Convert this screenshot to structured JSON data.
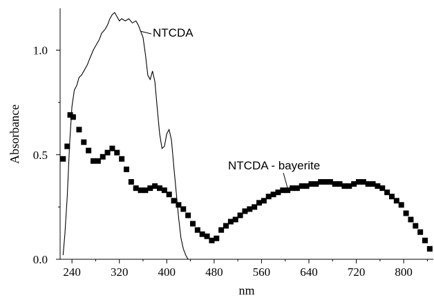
{
  "chart_data": {
    "type": "line",
    "xlabel": "nm",
    "ylabel": "Absorbance",
    "xlim": [
      220,
      850
    ],
    "ylim": [
      0,
      1.2
    ],
    "xticks": [
      "240",
      "320",
      "400",
      "480",
      "560",
      "640",
      "720",
      "800"
    ],
    "xtick_values": [
      240,
      320,
      400,
      480,
      560,
      640,
      720,
      800
    ],
    "yticks": [
      "0.0",
      "0.5",
      "1.0"
    ],
    "ytick_values": [
      0,
      0.5,
      1.0
    ],
    "grid": false,
    "legend": "none",
    "annotations": [
      {
        "text": "NTCDA",
        "series": "NTCDA"
      },
      {
        "text": "NTCDA - bayerite",
        "series": "NTCDA - bayerite"
      }
    ],
    "series": [
      {
        "name": "NTCDA",
        "style": "line",
        "color": "#000000",
        "x": [
          225,
          228,
          232,
          236,
          240,
          244,
          248,
          252,
          256,
          260,
          266,
          270,
          276,
          280,
          286,
          290,
          296,
          300,
          304,
          308,
          312,
          316,
          320,
          324,
          330,
          336,
          342,
          348,
          352,
          356,
          360,
          364,
          368,
          372,
          376,
          380,
          384,
          388,
          392,
          396,
          400,
          404,
          408,
          412,
          416,
          420,
          424,
          428,
          432,
          436
        ],
        "y": [
          0.02,
          0.12,
          0.3,
          0.55,
          0.73,
          0.81,
          0.83,
          0.87,
          0.88,
          0.9,
          0.93,
          0.96,
          1.0,
          1.02,
          1.05,
          1.08,
          1.1,
          1.12,
          1.15,
          1.17,
          1.18,
          1.16,
          1.14,
          1.15,
          1.14,
          1.15,
          1.13,
          1.14,
          1.12,
          1.09,
          1.06,
          0.98,
          0.88,
          0.86,
          0.9,
          0.85,
          0.72,
          0.6,
          0.53,
          0.54,
          0.6,
          0.62,
          0.57,
          0.44,
          0.32,
          0.2,
          0.1,
          0.05,
          0.02,
          0.0
        ]
      },
      {
        "name": "NTCDA - bayerite",
        "style": "markers",
        "color": "#000000",
        "x": [
          225,
          232,
          237,
          242,
          252,
          260,
          268,
          276,
          284,
          292,
          300,
          308,
          316,
          324,
          332,
          340,
          348,
          356,
          364,
          372,
          380,
          388,
          396,
          404,
          412,
          420,
          428,
          436,
          444,
          452,
          460,
          468,
          476,
          484,
          492,
          500,
          508,
          516,
          524,
          532,
          540,
          548,
          556,
          564,
          572,
          580,
          588,
          596,
          604,
          612,
          620,
          628,
          636,
          644,
          652,
          660,
          668,
          676,
          684,
          692,
          700,
          708,
          716,
          724,
          732,
          740,
          748,
          756,
          764,
          772,
          780,
          788,
          796,
          804,
          812,
          820,
          828,
          836,
          844
        ],
        "y": [
          0.48,
          0.54,
          0.69,
          0.68,
          0.62,
          0.56,
          0.52,
          0.47,
          0.47,
          0.49,
          0.51,
          0.53,
          0.51,
          0.48,
          0.43,
          0.37,
          0.34,
          0.33,
          0.33,
          0.34,
          0.35,
          0.34,
          0.33,
          0.31,
          0.28,
          0.26,
          0.24,
          0.21,
          0.17,
          0.14,
          0.12,
          0.11,
          0.09,
          0.1,
          0.14,
          0.16,
          0.18,
          0.19,
          0.21,
          0.23,
          0.24,
          0.25,
          0.27,
          0.28,
          0.3,
          0.31,
          0.32,
          0.33,
          0.33,
          0.34,
          0.34,
          0.35,
          0.35,
          0.36,
          0.36,
          0.37,
          0.37,
          0.37,
          0.36,
          0.36,
          0.35,
          0.35,
          0.36,
          0.37,
          0.37,
          0.36,
          0.36,
          0.35,
          0.34,
          0.32,
          0.3,
          0.28,
          0.26,
          0.22,
          0.19,
          0.16,
          0.13,
          0.09,
          0.05
        ]
      }
    ]
  }
}
